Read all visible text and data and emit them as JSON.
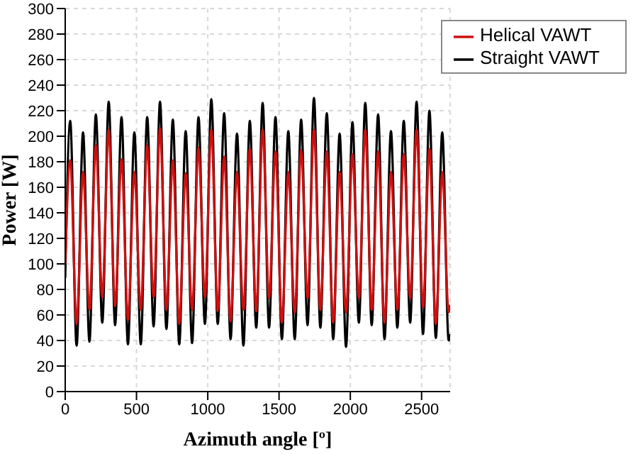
{
  "chart_data": {
    "type": "line",
    "xlabel": "Azimuth angle [º]",
    "ylabel": "Power [W]",
    "x": [
      0,
      35,
      80,
      125,
      170,
      215,
      260,
      305,
      350,
      395,
      440,
      485,
      530,
      575,
      620,
      665,
      710,
      755,
      800,
      845,
      890,
      935,
      980,
      1025,
      1070,
      1115,
      1160,
      1205,
      1250,
      1295,
      1340,
      1385,
      1430,
      1475,
      1520,
      1565,
      1610,
      1655,
      1700,
      1745,
      1790,
      1835,
      1880,
      1925,
      1970,
      2015,
      2060,
      2105,
      2150,
      2195,
      2240,
      2285,
      2330,
      2375,
      2420,
      2465,
      2510,
      2555,
      2600,
      2645,
      2690,
      2700
    ],
    "series": [
      {
        "name": "Straight VAWT",
        "color": "#000000",
        "values": [
          89,
          212,
          36,
          203,
          39,
          217,
          54,
          227,
          52,
          215,
          37,
          203,
          37,
          215,
          51,
          227,
          49,
          213,
          37,
          204,
          38,
          215,
          53,
          229,
          53,
          218,
          41,
          202,
          36,
          212,
          50,
          226,
          50,
          215,
          41,
          204,
          41,
          213,
          52,
          230,
          50,
          218,
          41,
          202,
          35,
          211,
          54,
          226,
          52,
          217,
          41,
          204,
          50,
          212,
          54,
          227,
          45,
          220,
          42,
          203,
          40,
          45
        ]
      },
      {
        "name": "Helical VAWT",
        "color": "#cc1010",
        "values": [
          100,
          181,
          53,
          172,
          64,
          193,
          74,
          205,
          67,
          182,
          56,
          172,
          64,
          193,
          74,
          206,
          64,
          181,
          53,
          171,
          64,
          191,
          74,
          205,
          63,
          184,
          55,
          172,
          64,
          190,
          63,
          205,
          73,
          188,
          54,
          172,
          62,
          189,
          73,
          205,
          64,
          188,
          54,
          172,
          62,
          186,
          73,
          205,
          64,
          188,
          54,
          172,
          64,
          186,
          73,
          205,
          66,
          190,
          53,
          172,
          62,
          68
        ]
      }
    ],
    "xlim": [
      0,
      2700
    ],
    "xticks": [
      0,
      500,
      1000,
      1500,
      2000,
      2500
    ],
    "ylim": [
      0,
      300
    ],
    "yticks": [
      0,
      20,
      40,
      60,
      80,
      100,
      120,
      140,
      160,
      180,
      200,
      220,
      240,
      260,
      280,
      300
    ],
    "grid": true,
    "legend": "top right",
    "marker": "none",
    "line_style": "solid"
  }
}
